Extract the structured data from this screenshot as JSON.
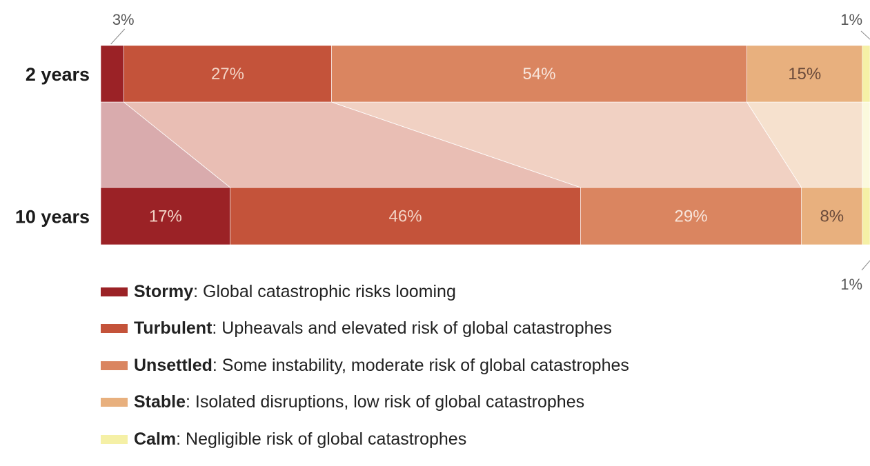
{
  "chart_data": {
    "type": "stacked-bar",
    "orientation": "horizontal",
    "normalized": true,
    "categories": [
      "2 years",
      "10 years"
    ],
    "series": [
      {
        "name": "Stormy",
        "color": "#9b2226",
        "values": [
          3,
          17
        ],
        "labels": [
          "3%",
          "17%"
        ]
      },
      {
        "name": "Turbulent",
        "color": "#c4533a",
        "values": [
          27,
          46
        ],
        "labels": [
          "27%",
          "46%"
        ]
      },
      {
        "name": "Unsettled",
        "color": "#da8560",
        "values": [
          54,
          29
        ],
        "labels": [
          "54%",
          "29%"
        ]
      },
      {
        "name": "Stable",
        "color": "#e8b07e",
        "values": [
          15,
          8
        ],
        "labels": [
          "15%",
          "8%"
        ]
      },
      {
        "name": "Calm",
        "color": "#f5f0a6",
        "values": [
          1,
          1
        ],
        "labels": [
          "1%",
          "1%"
        ]
      }
    ],
    "legend_position": "bottom",
    "title": "",
    "xlabel": "",
    "ylabel": ""
  },
  "legend": [
    {
      "term": "Stormy",
      "desc": ": Global catastrophic risks looming"
    },
    {
      "term": "Turbulent",
      "desc": ": Upheavals and elevated risk of global catastrophes"
    },
    {
      "term": "Unsettled",
      "desc": ": Some instability, moderate risk of global catastrophes"
    },
    {
      "term": "Stable",
      "desc": ": Isolated disruptions, low risk of global catastrophes"
    },
    {
      "term": "Calm",
      "desc": ": Negligible risk of global catastrophes"
    }
  ]
}
